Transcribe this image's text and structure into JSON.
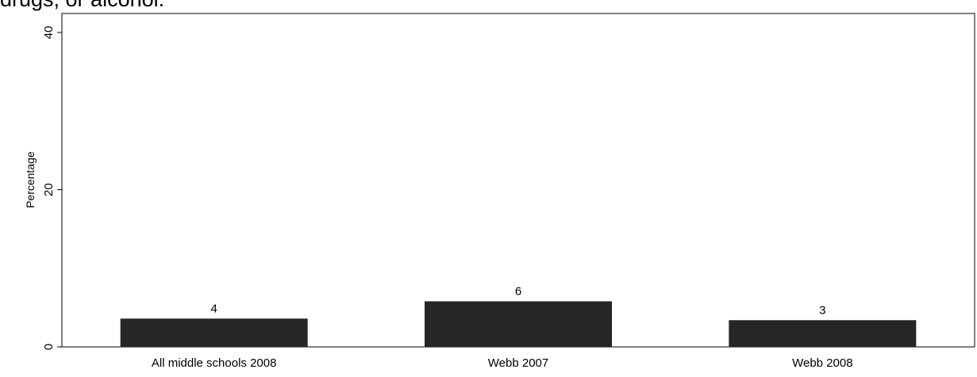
{
  "page": {
    "title_fragment": "drugs, or alcohol."
  },
  "chart_data": {
    "type": "bar",
    "categories": [
      "All middle schools 2008",
      "Webb 2007",
      "Webb 2008"
    ],
    "values": [
      3.6,
      5.8,
      3.4
    ],
    "data_labels": [
      "4",
      "6",
      "3"
    ],
    "ylabel": "Percentage",
    "xlabel": "",
    "ylim": [
      0,
      40
    ],
    "yticks": [
      0,
      20,
      40
    ],
    "ytick_labels": [
      "0",
      "20",
      "40"
    ],
    "bar_color": "#262626",
    "grid": false,
    "legend": "none"
  }
}
